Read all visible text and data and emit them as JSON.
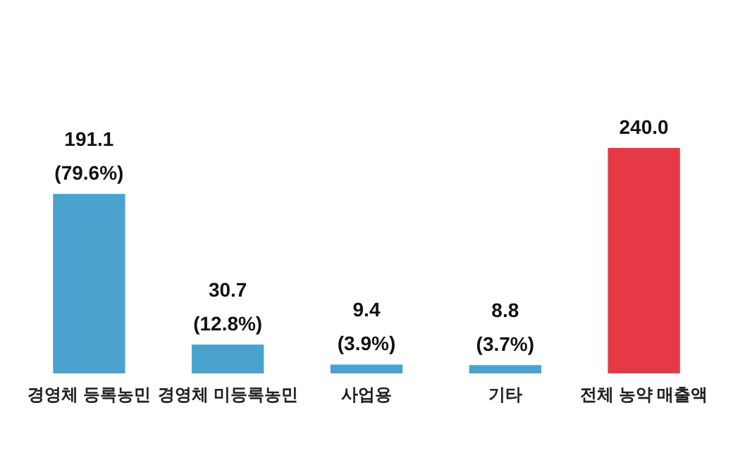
{
  "chart_data": {
    "type": "bar",
    "categories": [
      "경영체 등록농민",
      "경영체 미등록농민",
      "사업용",
      "기타",
      "전체 농약 매출액"
    ],
    "values": [
      191.1,
      30.7,
      9.4,
      8.8,
      240.0
    ],
    "colors": [
      "#4aa3cf",
      "#4aa3cf",
      "#4aa3cf",
      "#4aa3cf",
      "#e63946"
    ],
    "value_labels": [
      "191.1\n(79.6%)",
      "30.7\n(12.8%)",
      "9.4\n(3.9%)",
      "8.8\n(3.7%)",
      "240.0"
    ]
  }
}
